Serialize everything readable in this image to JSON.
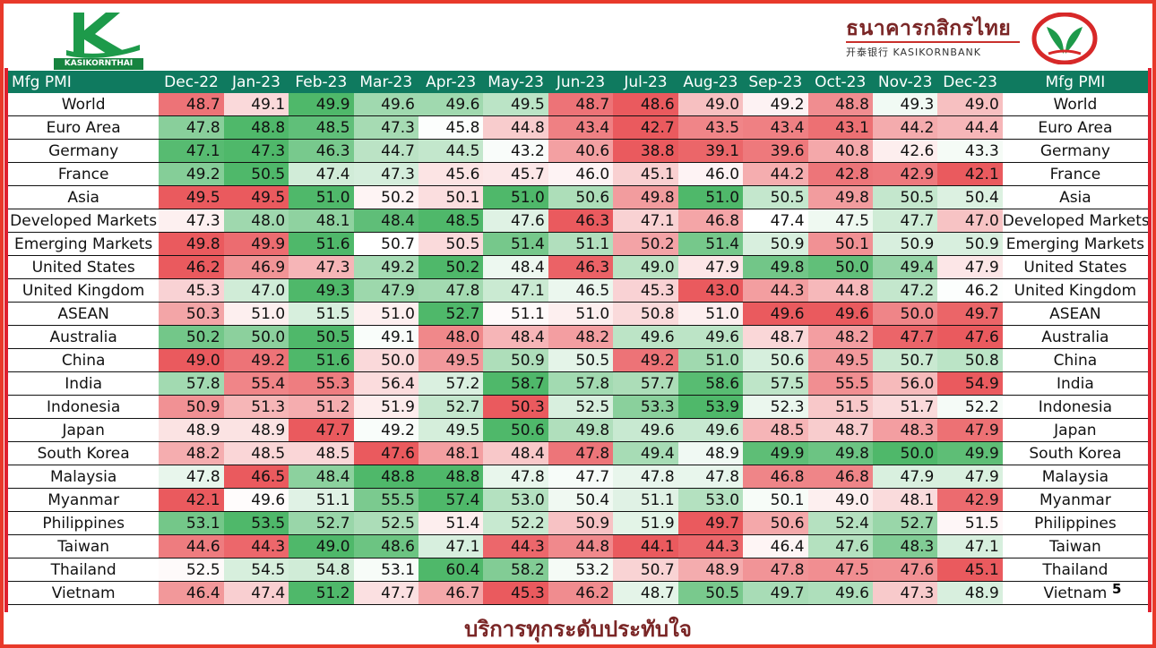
{
  "header": {
    "left_logo_text": "KASIKORNTHAI",
    "bank_name_thai": "ธนาคารกสิกรไทย",
    "bank_name_sub": "开泰银行 KASIKORNBANK"
  },
  "footer": {
    "slogan": "บริการทุกระดับประทับใจ",
    "page_number": "5"
  },
  "colors": {
    "header_bg": "#0f7a5f",
    "frame_red": "#e01f2d",
    "brand_green": "#17843f",
    "brand_maroon": "#7a2626",
    "heat_high": "#4fb86a",
    "heat_mid": "#ffffff",
    "heat_low": "#ea5a5e"
  },
  "icons": {
    "left_logo": "kasikornthai-k-logo",
    "right_logo": "kasikornbank-rice-leaf-logo",
    "marker": "red-dot-marker"
  },
  "chart_data": {
    "type": "heatmap",
    "title": "",
    "row_header_label": "Mfg PMI",
    "coloring": "per-row (green = highest, red = lowest)",
    "columns": [
      "Dec-22",
      "Jan-23",
      "Feb-23",
      "Mar-23",
      "Apr-23",
      "May-23",
      "Jun-23",
      "Jul-23",
      "Aug-23",
      "Sep-23",
      "Oct-23",
      "Nov-23",
      "Dec-23"
    ],
    "rows": [
      {
        "name": "World",
        "values": [
          "48.7",
          "49.1",
          "49.9",
          "49.6",
          "49.6",
          "49.5",
          "48.7",
          "48.6",
          "49.0",
          "49.2",
          "48.8",
          "49.3",
          "49.0"
        ]
      },
      {
        "name": "Euro Area",
        "values": [
          "47.8",
          "48.8",
          "48.5",
          "47.3",
          "45.8",
          "44.8",
          "43.4",
          "42.7",
          "43.5",
          "43.4",
          "43.1",
          "44.2",
          "44.4"
        ]
      },
      {
        "name": "Germany",
        "values": [
          "47.1",
          "47.3",
          "46.3",
          "44.7",
          "44.5",
          "43.2",
          "40.6",
          "38.8",
          "39.1",
          "39.6",
          "40.8",
          "42.6",
          "43.3"
        ]
      },
      {
        "name": "France",
        "values": [
          "49.2",
          "50.5",
          "47.4",
          "47.3",
          "45.6",
          "45.7",
          "46.0",
          "45.1",
          "46.0",
          "44.2",
          "42.8",
          "42.9",
          "42.1"
        ]
      },
      {
        "name": "Asia",
        "values": [
          "49.5",
          "49.5",
          "51.0",
          "50.2",
          "50.1",
          "51.0",
          "50.6",
          "49.8",
          "51.0",
          "50.5",
          "49.8",
          "50.5",
          "50.4"
        ]
      },
      {
        "name": "Developed Markets",
        "values": [
          "47.3",
          "48.0",
          "48.1",
          "48.4",
          "48.5",
          "47.6",
          "46.3",
          "47.1",
          "46.8",
          "47.4",
          "47.5",
          "47.7",
          "47.0"
        ]
      },
      {
        "name": "Emerging Markets",
        "values": [
          "49.8",
          "49.9",
          "51.6",
          "50.7",
          "50.5",
          "51.4",
          "51.1",
          "50.2",
          "51.4",
          "50.9",
          "50.1",
          "50.9",
          "50.9"
        ]
      },
      {
        "name": "United States",
        "values": [
          "46.2",
          "46.9",
          "47.3",
          "49.2",
          "50.2",
          "48.4",
          "46.3",
          "49.0",
          "47.9",
          "49.8",
          "50.0",
          "49.4",
          "47.9"
        ]
      },
      {
        "name": "United Kingdom",
        "values": [
          "45.3",
          "47.0",
          "49.3",
          "47.9",
          "47.8",
          "47.1",
          "46.5",
          "45.3",
          "43.0",
          "44.3",
          "44.8",
          "47.2",
          "46.2"
        ]
      },
      {
        "name": "ASEAN",
        "values": [
          "50.3",
          "51.0",
          "51.5",
          "51.0",
          "52.7",
          "51.1",
          "51.0",
          "50.8",
          "51.0",
          "49.6",
          "49.6",
          "50.0",
          "49.7"
        ]
      },
      {
        "name": "Australia",
        "values": [
          "50.2",
          "50.0",
          "50.5",
          "49.1",
          "48.0",
          "48.4",
          "48.2",
          "49.6",
          "49.6",
          "48.7",
          "48.2",
          "47.7",
          "47.6"
        ]
      },
      {
        "name": "China",
        "values": [
          "49.0",
          "49.2",
          "51.6",
          "50.0",
          "49.5",
          "50.9",
          "50.5",
          "49.2",
          "51.0",
          "50.6",
          "49.5",
          "50.7",
          "50.8"
        ]
      },
      {
        "name": "India",
        "values": [
          "57.8",
          "55.4",
          "55.3",
          "56.4",
          "57.2",
          "58.7",
          "57.8",
          "57.7",
          "58.6",
          "57.5",
          "55.5",
          "56.0",
          "54.9"
        ]
      },
      {
        "name": "Indonesia",
        "values": [
          "50.9",
          "51.3",
          "51.2",
          "51.9",
          "52.7",
          "50.3",
          "52.5",
          "53.3",
          "53.9",
          "52.3",
          "51.5",
          "51.7",
          "52.2"
        ]
      },
      {
        "name": "Japan",
        "values": [
          "48.9",
          "48.9",
          "47.7",
          "49.2",
          "49.5",
          "50.6",
          "49.8",
          "49.6",
          "49.6",
          "48.5",
          "48.7",
          "48.3",
          "47.9"
        ]
      },
      {
        "name": "South Korea",
        "values": [
          "48.2",
          "48.5",
          "48.5",
          "47.6",
          "48.1",
          "48.4",
          "47.8",
          "49.4",
          "48.9",
          "49.9",
          "49.8",
          "50.0",
          "49.9"
        ]
      },
      {
        "name": "Malaysia",
        "values": [
          "47.8",
          "46.5",
          "48.4",
          "48.8",
          "48.8",
          "47.8",
          "47.7",
          "47.8",
          "47.8",
          "46.8",
          "46.8",
          "47.9",
          "47.9"
        ]
      },
      {
        "name": "Myanmar",
        "values": [
          "42.1",
          "49.6",
          "51.1",
          "55.5",
          "57.4",
          "53.0",
          "50.4",
          "51.1",
          "53.0",
          "50.1",
          "49.0",
          "48.1",
          "42.9"
        ]
      },
      {
        "name": "Philippines",
        "values": [
          "53.1",
          "53.5",
          "52.7",
          "52.5",
          "51.4",
          "52.2",
          "50.9",
          "51.9",
          "49.7",
          "50.6",
          "52.4",
          "52.7",
          "51.5"
        ]
      },
      {
        "name": "Taiwan",
        "values": [
          "44.6",
          "44.3",
          "49.0",
          "48.6",
          "47.1",
          "44.3",
          "44.8",
          "44.1",
          "44.3",
          "46.4",
          "47.6",
          "48.3",
          "47.1"
        ]
      },
      {
        "name": "Thailand",
        "values": [
          "52.5",
          "54.5",
          "54.8",
          "53.1",
          "60.4",
          "58.2",
          "53.2",
          "50.7",
          "48.9",
          "47.8",
          "47.5",
          "47.6",
          "45.1"
        ]
      },
      {
        "name": "Vietnam",
        "values": [
          "46.4",
          "47.4",
          "51.2",
          "47.7",
          "46.7",
          "45.3",
          "46.2",
          "48.7",
          "50.5",
          "49.7",
          "49.6",
          "47.3",
          "48.9"
        ]
      }
    ]
  }
}
